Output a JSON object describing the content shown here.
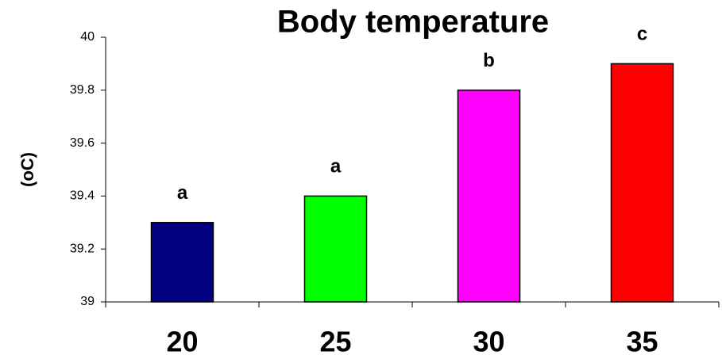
{
  "chart_data": {
    "type": "bar",
    "title": "Body temperature",
    "y_label": "(oC)",
    "categories": [
      "20",
      "25",
      "30",
      "35"
    ],
    "values": [
      39.3,
      39.4,
      39.8,
      39.9
    ],
    "colors": [
      "#000080",
      "#00ff00",
      "#ff00ff",
      "#ff0000"
    ],
    "annotations": [
      "a",
      "a",
      "b",
      "c"
    ],
    "ylim": [
      39,
      40
    ],
    "yticks": [
      39,
      39.2,
      39.4,
      39.6,
      39.8,
      40
    ]
  }
}
